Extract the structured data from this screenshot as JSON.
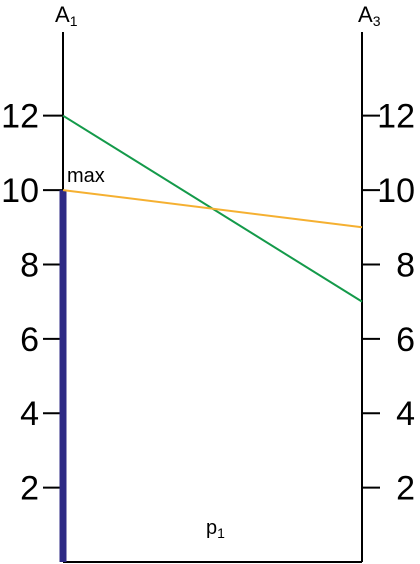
{
  "chart_data": {
    "type": "line",
    "axes": [
      {
        "title_main": "A",
        "title_sub": "1",
        "position": "left"
      },
      {
        "title_main": "A",
        "title_sub": "3",
        "position": "right"
      }
    ],
    "ylim": [
      0,
      14.25
    ],
    "ticks": [
      2,
      4,
      6,
      8,
      10,
      12
    ],
    "tick_labels": [
      "2",
      "4",
      "6",
      "8",
      "10",
      "12"
    ],
    "lines": [
      {
        "color": "#149a4a",
        "from": 12,
        "to": 7
      },
      {
        "color": "#f5b031",
        "from": 10,
        "to": 9
      }
    ],
    "highlight": {
      "color": "#2e2a85",
      "axis": "left",
      "from": 0,
      "to": 10
    },
    "annotations": {
      "max_label": "max",
      "bottom_label_main": "p",
      "bottom_label_sub": "1"
    }
  }
}
